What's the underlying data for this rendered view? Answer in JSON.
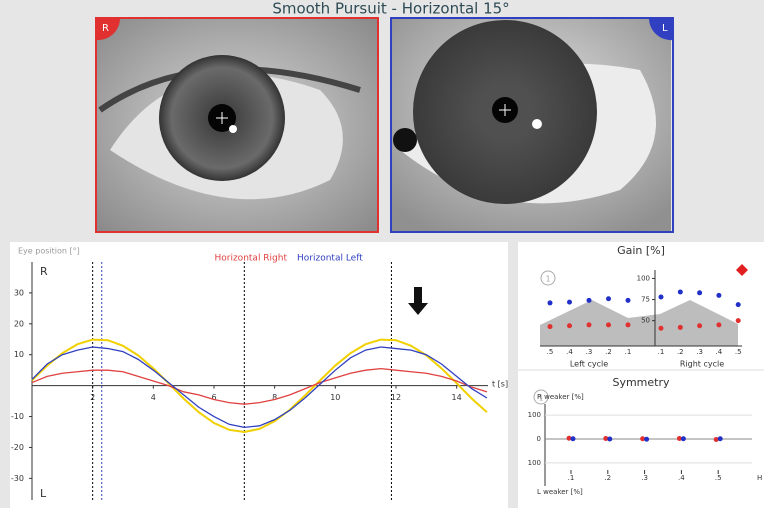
{
  "header": {
    "title": "Smooth Pursuit - Horizontal 15°",
    "right_badge": "R",
    "left_badge": "L"
  },
  "chart_data": [
    {
      "type": "line",
      "y_label": "Eye position [°]",
      "x_label": "t [s]",
      "top_label": "R",
      "bottom_label": "L",
      "x": [
        0,
        0.5,
        1,
        1.5,
        2,
        2.5,
        3,
        3.5,
        4,
        4.5,
        5,
        5.5,
        6,
        6.5,
        7,
        7.5,
        8,
        8.5,
        9,
        9.5,
        10,
        10.5,
        11,
        11.5,
        12,
        12.5,
        13,
        13.5,
        14,
        14.5,
        15
      ],
      "series": [
        {
          "color": "#f0d000",
          "values": [
            1.7,
            6.5,
            10.5,
            13.4,
            14.9,
            14.7,
            12.9,
            9.8,
            5.6,
            0.8,
            -4.2,
            -8.6,
            -12.1,
            -14.3,
            -15.0,
            -14.0,
            -11.5,
            -7.8,
            -3.2,
            1.7,
            6.5,
            10.5,
            13.4,
            14.9,
            14.7,
            12.9,
            9.8,
            5.6,
            0.8,
            -4.2,
            -8.6
          ]
        },
        {
          "name": "Horizontal Right",
          "color": "#e04040",
          "values": [
            1,
            3,
            4,
            4.5,
            5,
            5,
            4.5,
            3,
            1.5,
            0,
            -2,
            -3,
            -4.5,
            -5.5,
            -6,
            -5.5,
            -4.5,
            -3,
            -1,
            1,
            2.5,
            4,
            5,
            5.5,
            5,
            4.5,
            4,
            3,
            1.5,
            -0.5,
            -2
          ]
        },
        {
          "name": "Horizontal Left",
          "color": "#3040c0",
          "values": [
            2,
            7,
            10,
            11.5,
            12.5,
            12,
            11,
            8.5,
            5,
            1,
            -3,
            -7,
            -10,
            -12.5,
            -13.5,
            -13,
            -11,
            -8,
            -4,
            0.5,
            5,
            9,
            11.5,
            12.5,
            12,
            11.5,
            10,
            7,
            3,
            -1,
            -4
          ]
        }
      ],
      "markers": [
        {
          "x": 2,
          "color": "#000000"
        },
        {
          "x": 2.3,
          "color": "#3040c0"
        },
        {
          "x": 7,
          "color": "#000000"
        },
        {
          "x": 11.85,
          "color": "#000000"
        }
      ],
      "xlim": [
        0,
        15.1
      ],
      "ylim": [
        -37,
        40
      ],
      "xticks": [
        2,
        4,
        6,
        8,
        10,
        12,
        14
      ],
      "yticks": [
        30,
        20,
        10,
        -10,
        -20,
        -30
      ]
    },
    {
      "type": "scatter",
      "title": "Gain [%]",
      "badge": "1",
      "left_label": "Left cycle",
      "right_label": "Right cycle",
      "left_categories": [
        ".5",
        ".4",
        ".3",
        ".2",
        ".1"
      ],
      "right_categories": [
        ".1",
        ".2",
        ".3",
        ".4",
        ".5"
      ],
      "series": [
        {
          "color": "#2030c8",
          "left_values": [
            71,
            72,
            74,
            76,
            74
          ],
          "right_values": [
            78,
            84,
            83,
            80,
            69
          ]
        },
        {
          "color": "#e03030",
          "left_values": [
            43,
            44,
            45,
            45,
            45
          ],
          "right_values": [
            41,
            42,
            44,
            45,
            50
          ]
        }
      ],
      "ylim": [
        20,
        110
      ],
      "yticks": [
        50,
        75,
        100
      ]
    },
    {
      "type": "scatter",
      "title": "Symmetry",
      "badge": "1",
      "top_label": "R weaker [%]",
      "bottom_label": "L weaker [%]",
      "x_label": "H",
      "categories": [
        ".1",
        ".2",
        ".3",
        ".4",
        ".5"
      ],
      "series": [
        {
          "color": "#e03030",
          "values": [
            3,
            2,
            1,
            2,
            -2
          ]
        },
        {
          "color": "#2030c8",
          "values": [
            1,
            0,
            -1,
            1,
            1
          ]
        }
      ],
      "ylim": [
        -130,
        130
      ],
      "yticks": [
        {
          "value": 100,
          "label": "100"
        },
        0,
        {
          "value": -100,
          "label": "100"
        }
      ]
    }
  ]
}
